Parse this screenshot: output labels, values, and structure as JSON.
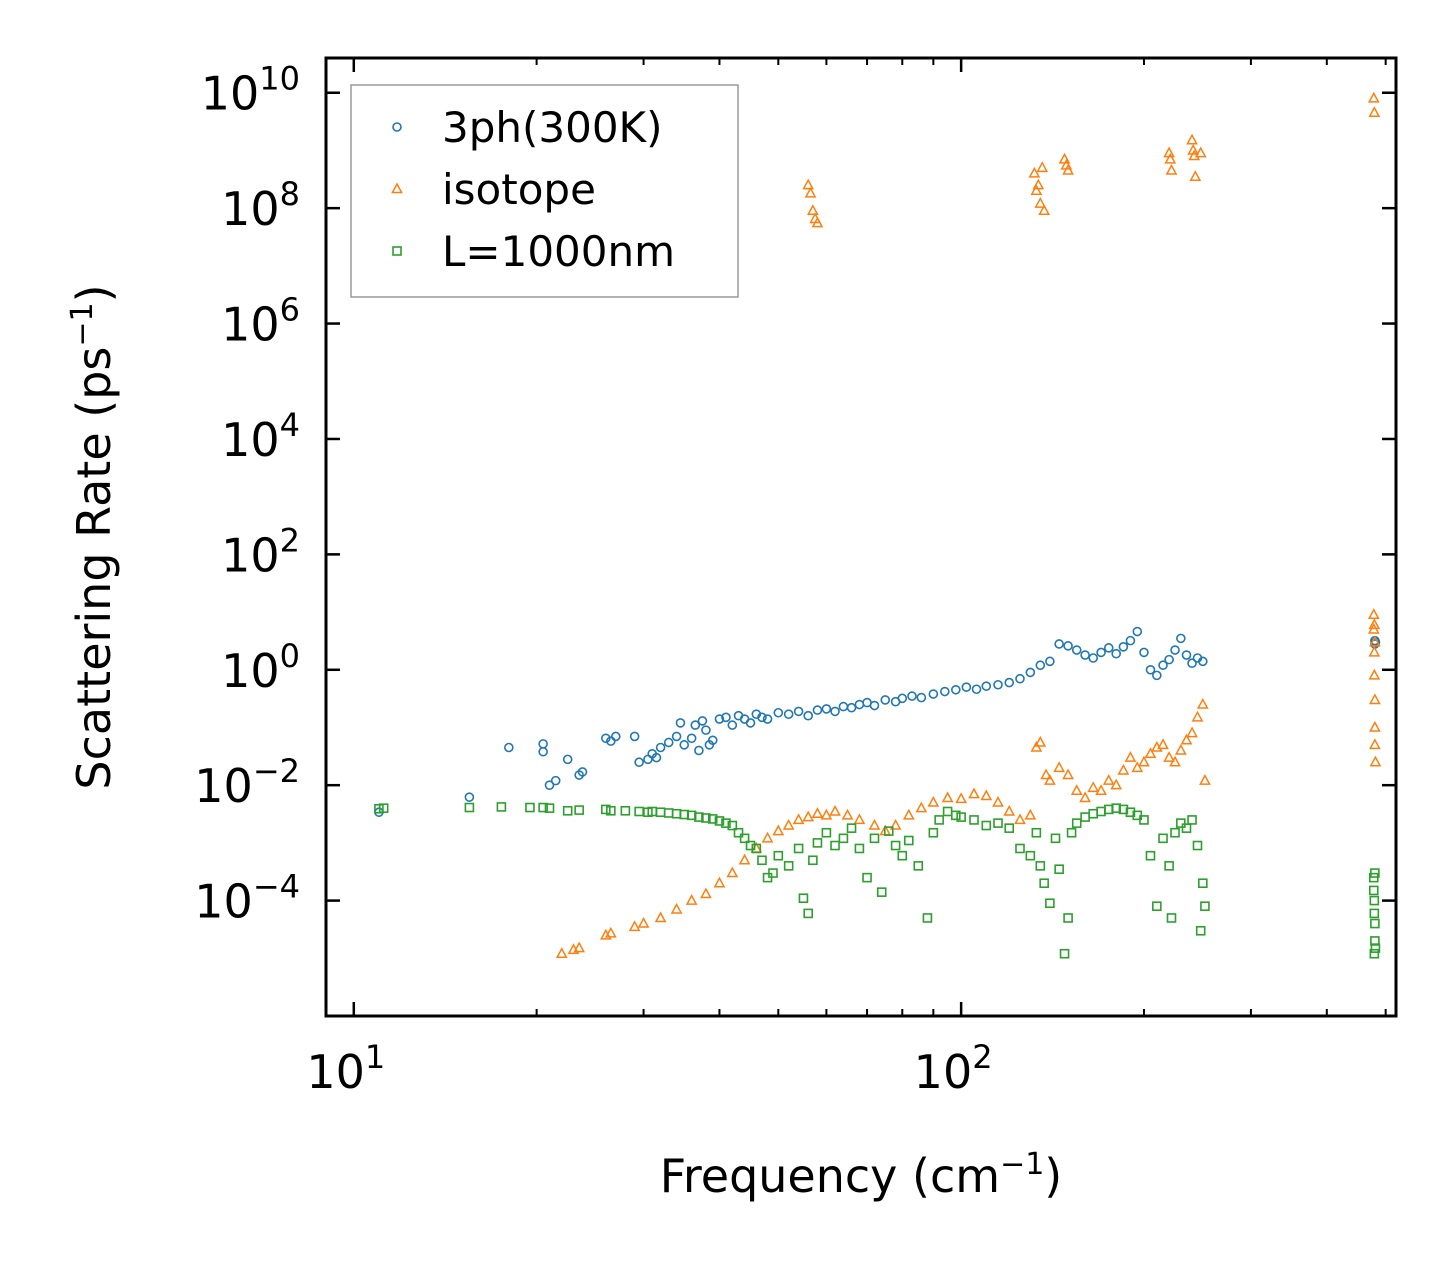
{
  "chart_data": {
    "type": "scatter",
    "title": "",
    "xlabel": "Frequency (cm",
    "xlabel_sup": "−1",
    "xlabel_end": ")",
    "ylabel": "Scattering Rate (ps",
    "ylabel_sup": "−1",
    "ylabel_end": ")",
    "xscale": "log",
    "yscale": "log",
    "xlim": [
      9,
      520
    ],
    "ylim": [
      1e-06,
      40000000000
    ],
    "x_ticks": [
      {
        "value": 10,
        "base": "10",
        "exp": "1"
      },
      {
        "value": 100,
        "base": "10",
        "exp": "2"
      }
    ],
    "y_ticks": [
      {
        "value": 10000000000,
        "base": "10",
        "exp": "10"
      },
      {
        "value": 100000000,
        "base": "10",
        "exp": "8"
      },
      {
        "value": 1000000,
        "base": "10",
        "exp": "6"
      },
      {
        "value": 10000,
        "base": "10",
        "exp": "4"
      },
      {
        "value": 100,
        "base": "10",
        "exp": "2"
      },
      {
        "value": 1,
        "base": "10",
        "exp": "0"
      },
      {
        "value": 0.01,
        "base": "10",
        "exp": "−2"
      },
      {
        "value": 0.0001,
        "base": "10",
        "exp": "−4"
      }
    ],
    "legend_position": "top-left",
    "series": [
      {
        "name": "3ph(300K)",
        "marker": "circle",
        "color": "#1f77b4",
        "points": [
          [
            11,
            0.0034
          ],
          [
            15.5,
            0.0062
          ],
          [
            18,
            0.045
          ],
          [
            20.5,
            0.052
          ],
          [
            20.5,
            0.038
          ],
          [
            21,
            0.01
          ],
          [
            21.5,
            0.012
          ],
          [
            22.5,
            0.028
          ],
          [
            23.5,
            0.015
          ],
          [
            23.8,
            0.017
          ],
          [
            26,
            0.065
          ],
          [
            26.5,
            0.058
          ],
          [
            27,
            0.07
          ],
          [
            29,
            0.07
          ],
          [
            29.5,
            0.025
          ],
          [
            30.5,
            0.028
          ],
          [
            31,
            0.035
          ],
          [
            31.5,
            0.03
          ],
          [
            32,
            0.045
          ],
          [
            33,
            0.055
          ],
          [
            34,
            0.07
          ],
          [
            34.5,
            0.12
          ],
          [
            35,
            0.05
          ],
          [
            36,
            0.065
          ],
          [
            36.5,
            0.11
          ],
          [
            37,
            0.04
          ],
          [
            37.5,
            0.13
          ],
          [
            38,
            0.09
          ],
          [
            38.5,
            0.05
          ],
          [
            39,
            0.06
          ],
          [
            40,
            0.14
          ],
          [
            41,
            0.15
          ],
          [
            42,
            0.11
          ],
          [
            43,
            0.16
          ],
          [
            44,
            0.14
          ],
          [
            45,
            0.12
          ],
          [
            46,
            0.17
          ],
          [
            47,
            0.15
          ],
          [
            48,
            0.14
          ],
          [
            50,
            0.18
          ],
          [
            52,
            0.17
          ],
          [
            54,
            0.19
          ],
          [
            56,
            0.16
          ],
          [
            58,
            0.2
          ],
          [
            60,
            0.21
          ],
          [
            62,
            0.19
          ],
          [
            64,
            0.23
          ],
          [
            66,
            0.22
          ],
          [
            68,
            0.25
          ],
          [
            70,
            0.27
          ],
          [
            72,
            0.24
          ],
          [
            75,
            0.3
          ],
          [
            78,
            0.28
          ],
          [
            80,
            0.32
          ],
          [
            83,
            0.35
          ],
          [
            86,
            0.33
          ],
          [
            90,
            0.38
          ],
          [
            94,
            0.42
          ],
          [
            98,
            0.45
          ],
          [
            102,
            0.5
          ],
          [
            106,
            0.46
          ],
          [
            110,
            0.52
          ],
          [
            115,
            0.55
          ],
          [
            120,
            0.6
          ],
          [
            125,
            0.7
          ],
          [
            130,
            0.9
          ],
          [
            135,
            1.2
          ],
          [
            140,
            1.4
          ],
          [
            145,
            2.8
          ],
          [
            150,
            2.6
          ],
          [
            155,
            2.2
          ],
          [
            160,
            1.8
          ],
          [
            165,
            1.6
          ],
          [
            170,
            2.0
          ],
          [
            175,
            2.4
          ],
          [
            180,
            1.9
          ],
          [
            185,
            2.5
          ],
          [
            190,
            3.2
          ],
          [
            195,
            4.6
          ],
          [
            200,
            2.0
          ],
          [
            205,
            1.0
          ],
          [
            210,
            0.8
          ],
          [
            215,
            1.2
          ],
          [
            220,
            1.5
          ],
          [
            225,
            2.2
          ],
          [
            230,
            3.5
          ],
          [
            235,
            1.8
          ],
          [
            240,
            1.3
          ],
          [
            245,
            1.6
          ],
          [
            250,
            1.4
          ],
          [
            480,
            3.2
          ],
          [
            480,
            2.8
          ],
          [
            481,
            3.0
          ]
        ]
      },
      {
        "name": "isotope",
        "marker": "triangle",
        "color": "#ff7f0e",
        "points": [
          [
            22,
            1.2e-05
          ],
          [
            23,
            1.4e-05
          ],
          [
            23.5,
            1.5e-05
          ],
          [
            26,
            2.5e-05
          ],
          [
            26.5,
            2.7e-05
          ],
          [
            29,
            3.5e-05
          ],
          [
            30,
            4e-05
          ],
          [
            32,
            5e-05
          ],
          [
            34,
            7e-05
          ],
          [
            36,
            0.0001
          ],
          [
            38,
            0.00013
          ],
          [
            40,
            0.0002
          ],
          [
            42,
            0.0003
          ],
          [
            44,
            0.0005
          ],
          [
            46,
            0.0008
          ],
          [
            48,
            0.0012
          ],
          [
            50,
            0.0016
          ],
          [
            52,
            0.002
          ],
          [
            54,
            0.0025
          ],
          [
            56,
            0.0028
          ],
          [
            58,
            0.0032
          ],
          [
            60,
            0.003
          ],
          [
            62,
            0.0035
          ],
          [
            65,
            0.003
          ],
          [
            68,
            0.0025
          ],
          [
            72,
            0.002
          ],
          [
            75,
            0.0016
          ],
          [
            78,
            0.002
          ],
          [
            82,
            0.003
          ],
          [
            86,
            0.004
          ],
          [
            90,
            0.005
          ],
          [
            95,
            0.006
          ],
          [
            100,
            0.0058
          ],
          [
            105,
            0.007
          ],
          [
            110,
            0.0065
          ],
          [
            115,
            0.005
          ],
          [
            120,
            0.0035
          ],
          [
            125,
            0.0025
          ],
          [
            130,
            0.003
          ],
          [
            133,
            0.045
          ],
          [
            135,
            0.055
          ],
          [
            138,
            0.015
          ],
          [
            140,
            0.012
          ],
          [
            145,
            0.02
          ],
          [
            150,
            0.015
          ],
          [
            155,
            0.008
          ],
          [
            160,
            0.006
          ],
          [
            165,
            0.009
          ],
          [
            170,
            0.008
          ],
          [
            175,
            0.012
          ],
          [
            180,
            0.01
          ],
          [
            185,
            0.018
          ],
          [
            190,
            0.03
          ],
          [
            195,
            0.02
          ],
          [
            200,
            0.025
          ],
          [
            205,
            0.035
          ],
          [
            210,
            0.045
          ],
          [
            215,
            0.05
          ],
          [
            220,
            0.03
          ],
          [
            225,
            0.025
          ],
          [
            230,
            0.04
          ],
          [
            235,
            0.06
          ],
          [
            240,
            0.08
          ],
          [
            245,
            0.15
          ],
          [
            250,
            0.25
          ],
          [
            252,
            0.012
          ],
          [
            56,
            250000000
          ],
          [
            56.5,
            180000000
          ],
          [
            57,
            90000000
          ],
          [
            57.5,
            65000000
          ],
          [
            58,
            55000000
          ],
          [
            132,
            400000000
          ],
          [
            133,
            200000000
          ],
          [
            134,
            250000000
          ],
          [
            135,
            120000000
          ],
          [
            136,
            500000000
          ],
          [
            137,
            90000000
          ],
          [
            148,
            700000000
          ],
          [
            149,
            550000000
          ],
          [
            150,
            450000000
          ],
          [
            220,
            900000000
          ],
          [
            221,
            700000000
          ],
          [
            222,
            450000000
          ],
          [
            240,
            1500000000
          ],
          [
            241,
            1000000000
          ],
          [
            242,
            800000000
          ],
          [
            243,
            350000000
          ],
          [
            248,
            900000000
          ],
          [
            478,
            8000000000
          ],
          [
            479,
            4500000000
          ],
          [
            478,
            9
          ],
          [
            478,
            5
          ],
          [
            479,
            2
          ],
          [
            479,
            0.8
          ],
          [
            480,
            0.3
          ],
          [
            480,
            0.1
          ],
          [
            480,
            0.05
          ],
          [
            481,
            0.025
          ],
          [
            479,
            6
          ],
          [
            480,
            3
          ]
        ]
      },
      {
        "name": "L=1000nm",
        "marker": "square",
        "color": "#2ca02c",
        "points": [
          [
            11,
            0.0039
          ],
          [
            11.2,
            0.004
          ],
          [
            15.5,
            0.0041
          ],
          [
            17.5,
            0.0042
          ],
          [
            19.5,
            0.0041
          ],
          [
            20.5,
            0.0041
          ],
          [
            21,
            0.004
          ],
          [
            22.5,
            0.0036
          ],
          [
            23.5,
            0.0037
          ],
          [
            26,
            0.0038
          ],
          [
            26.5,
            0.0036
          ],
          [
            28,
            0.0036
          ],
          [
            29.5,
            0.0035
          ],
          [
            30.5,
            0.0034
          ],
          [
            31,
            0.0035
          ],
          [
            32,
            0.0034
          ],
          [
            33,
            0.0033
          ],
          [
            34,
            0.0032
          ],
          [
            35,
            0.0031
          ],
          [
            36,
            0.003
          ],
          [
            37,
            0.0028
          ],
          [
            38,
            0.0027
          ],
          [
            39,
            0.0026
          ],
          [
            40,
            0.0024
          ],
          [
            41,
            0.0022
          ],
          [
            42,
            0.002
          ],
          [
            43,
            0.0015
          ],
          [
            44,
            0.0012
          ],
          [
            45,
            0.0009
          ],
          [
            46,
            0.0008
          ],
          [
            47,
            0.0005
          ],
          [
            48,
            0.00025
          ],
          [
            49,
            0.0003
          ],
          [
            50,
            0.0006
          ],
          [
            52,
            0.0004
          ],
          [
            54,
            0.0008
          ],
          [
            55,
            0.00011
          ],
          [
            56,
            6e-05
          ],
          [
            57,
            0.0005
          ],
          [
            58,
            0.001
          ],
          [
            60,
            0.0015
          ],
          [
            62,
            0.0009
          ],
          [
            64,
            0.0012
          ],
          [
            66,
            0.0018
          ],
          [
            68,
            0.0008
          ],
          [
            70,
            0.00025
          ],
          [
            72,
            0.0012
          ],
          [
            74,
            0.00014
          ],
          [
            76,
            0.0016
          ],
          [
            78,
            0.0009
          ],
          [
            80,
            0.0006
          ],
          [
            82,
            0.0011
          ],
          [
            85,
            0.0004
          ],
          [
            88,
            5e-05
          ],
          [
            90,
            0.0015
          ],
          [
            92,
            0.0025
          ],
          [
            95,
            0.0035
          ],
          [
            98,
            0.003
          ],
          [
            100,
            0.0028
          ],
          [
            105,
            0.0025
          ],
          [
            110,
            0.002
          ],
          [
            115,
            0.0022
          ],
          [
            120,
            0.0018
          ],
          [
            125,
            0.0008
          ],
          [
            130,
            0.0006
          ],
          [
            133,
            0.0015
          ],
          [
            135,
            0.0004
          ],
          [
            137,
            0.0002
          ],
          [
            140,
            9e-05
          ],
          [
            143,
            0.0012
          ],
          [
            145,
            0.00035
          ],
          [
            148,
            1.2e-05
          ],
          [
            150,
            5e-05
          ],
          [
            152,
            0.0015
          ],
          [
            155,
            0.0022
          ],
          [
            160,
            0.0028
          ],
          [
            165,
            0.0032
          ],
          [
            170,
            0.0035
          ],
          [
            175,
            0.0038
          ],
          [
            180,
            0.004
          ],
          [
            185,
            0.0038
          ],
          [
            190,
            0.0034
          ],
          [
            195,
            0.003
          ],
          [
            200,
            0.0025
          ],
          [
            205,
            0.0006
          ],
          [
            210,
            8e-05
          ],
          [
            215,
            0.0012
          ],
          [
            220,
            0.0004
          ],
          [
            222,
            5e-05
          ],
          [
            225,
            0.0015
          ],
          [
            230,
            0.0022
          ],
          [
            235,
            0.0018
          ],
          [
            240,
            0.0025
          ],
          [
            245,
            0.0009
          ],
          [
            248,
            3e-05
          ],
          [
            250,
            0.0002
          ],
          [
            252,
            8e-05
          ],
          [
            478,
            0.00025
          ],
          [
            478,
            0.00015
          ],
          [
            479,
            0.0001
          ],
          [
            479,
            6e-05
          ],
          [
            480,
            4e-05
          ],
          [
            480,
            2e-05
          ],
          [
            481,
            1.5e-05
          ],
          [
            479,
            1.2e-05
          ],
          [
            480,
            0.0003
          ]
        ]
      }
    ]
  }
}
